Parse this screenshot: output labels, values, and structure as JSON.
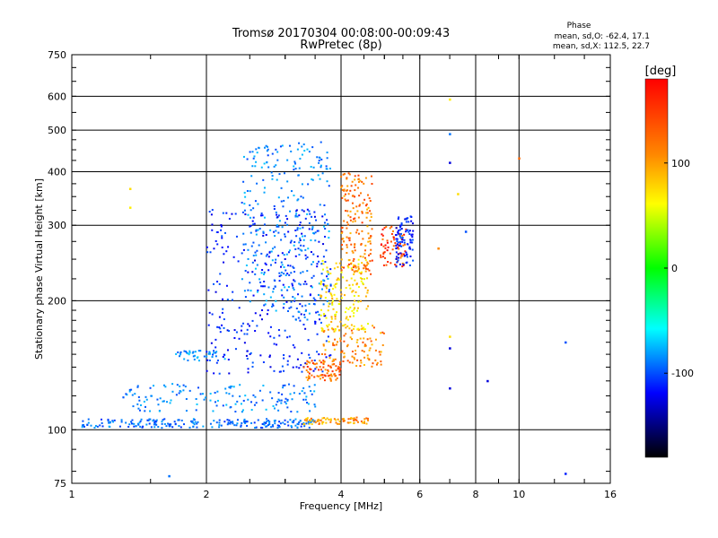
{
  "chart_data": {
    "type": "scatter",
    "title": "Tromsø 20170304 00:08:00-00:09:43",
    "subtitle": "RwPretec (8p)",
    "xlabel": "Frequency [MHz]",
    "ylabel": "Stationary phase Virtual Height [km]",
    "x_scale": "log",
    "y_scale": "log",
    "xlim": [
      1,
      16
    ],
    "ylim": [
      75,
      750
    ],
    "x_ticks": [
      1,
      2,
      4,
      6,
      8,
      10,
      16
    ],
    "y_ticks": [
      75,
      100,
      200,
      300,
      400,
      500,
      600,
      750
    ],
    "x_gridlines": [
      2,
      4,
      6,
      8,
      10
    ],
    "y_gridlines": [
      100,
      200,
      300,
      400,
      500,
      600
    ],
    "grid": true,
    "phase_info": {
      "heading": "Phase",
      "line_o": "mean, sd,O: -62.4, 17.1",
      "line_x": "mean, sd,X: 112.5, 22.7"
    },
    "colorbar": {
      "label": "[deg]",
      "range": [
        -180,
        180
      ],
      "ticks": [
        100,
        0,
        -100
      ],
      "colormap": "rainbow"
    },
    "series": [
      {
        "x_range": [
          1.05,
          3.5
        ],
        "y_range": [
          101,
          106
        ],
        "phase": -88,
        "count": 220
      },
      {
        "x_range": [
          3.3,
          4.7
        ],
        "y_range": [
          103,
          107
        ],
        "phase": 135,
        "count": 70
      },
      {
        "x_range": [
          1.3,
          3.6
        ],
        "y_range": [
          110,
          128
        ],
        "phase": -80,
        "count": 150
      },
      {
        "x_range": [
          1.7,
          2.2
        ],
        "y_range": [
          145,
          153
        ],
        "phase": -75,
        "count": 40
      },
      {
        "x_range": [
          2.0,
          3.8
        ],
        "y_range": [
          135,
          330
        ],
        "phase": -110,
        "count": 320
      },
      {
        "x_range": [
          2.4,
          3.8
        ],
        "y_range": [
          180,
          470
        ],
        "phase": -80,
        "count": 300
      },
      {
        "x_range": [
          3.3,
          4.0
        ],
        "y_range": [
          130,
          145
        ],
        "phase": 150,
        "count": 80
      },
      {
        "x_range": [
          3.6,
          5.0
        ],
        "y_range": [
          140,
          175
        ],
        "phase": 140,
        "count": 110
      },
      {
        "x_range": [
          3.6,
          4.6
        ],
        "y_range": [
          170,
          250
        ],
        "phase": 115,
        "count": 160
      },
      {
        "x_range": [
          4.0,
          4.7
        ],
        "y_range": [
          230,
          400
        ],
        "phase": 145,
        "count": 170
      },
      {
        "x_range": [
          4.9,
          5.6
        ],
        "y_range": [
          240,
          300
        ],
        "phase": 160,
        "count": 70
      },
      {
        "x_range": [
          5.3,
          5.8
        ],
        "y_range": [
          240,
          320
        ],
        "phase": -110,
        "count": 90
      }
    ],
    "isolated_points": [
      {
        "x": 1.35,
        "y": 365,
        "phase": 115
      },
      {
        "x": 1.35,
        "y": 330,
        "phase": 110
      },
      {
        "x": 1.65,
        "y": 78,
        "phase": -85
      },
      {
        "x": 7.0,
        "y": 590,
        "phase": 110
      },
      {
        "x": 7.0,
        "y": 490,
        "phase": -85
      },
      {
        "x": 7.0,
        "y": 420,
        "phase": -130
      },
      {
        "x": 7.0,
        "y": 165,
        "phase": 115
      },
      {
        "x": 7.0,
        "y": 155,
        "phase": -130
      },
      {
        "x": 7.0,
        "y": 125,
        "phase": -130
      },
      {
        "x": 8.5,
        "y": 130,
        "phase": -130
      },
      {
        "x": 10.0,
        "y": 430,
        "phase": 150
      },
      {
        "x": 12.7,
        "y": 160,
        "phase": -95
      },
      {
        "x": 12.7,
        "y": 79,
        "phase": -110
      },
      {
        "x": 7.6,
        "y": 290,
        "phase": -95
      },
      {
        "x": 6.6,
        "y": 265,
        "phase": 140
      },
      {
        "x": 7.3,
        "y": 355,
        "phase": 115
      }
    ]
  }
}
